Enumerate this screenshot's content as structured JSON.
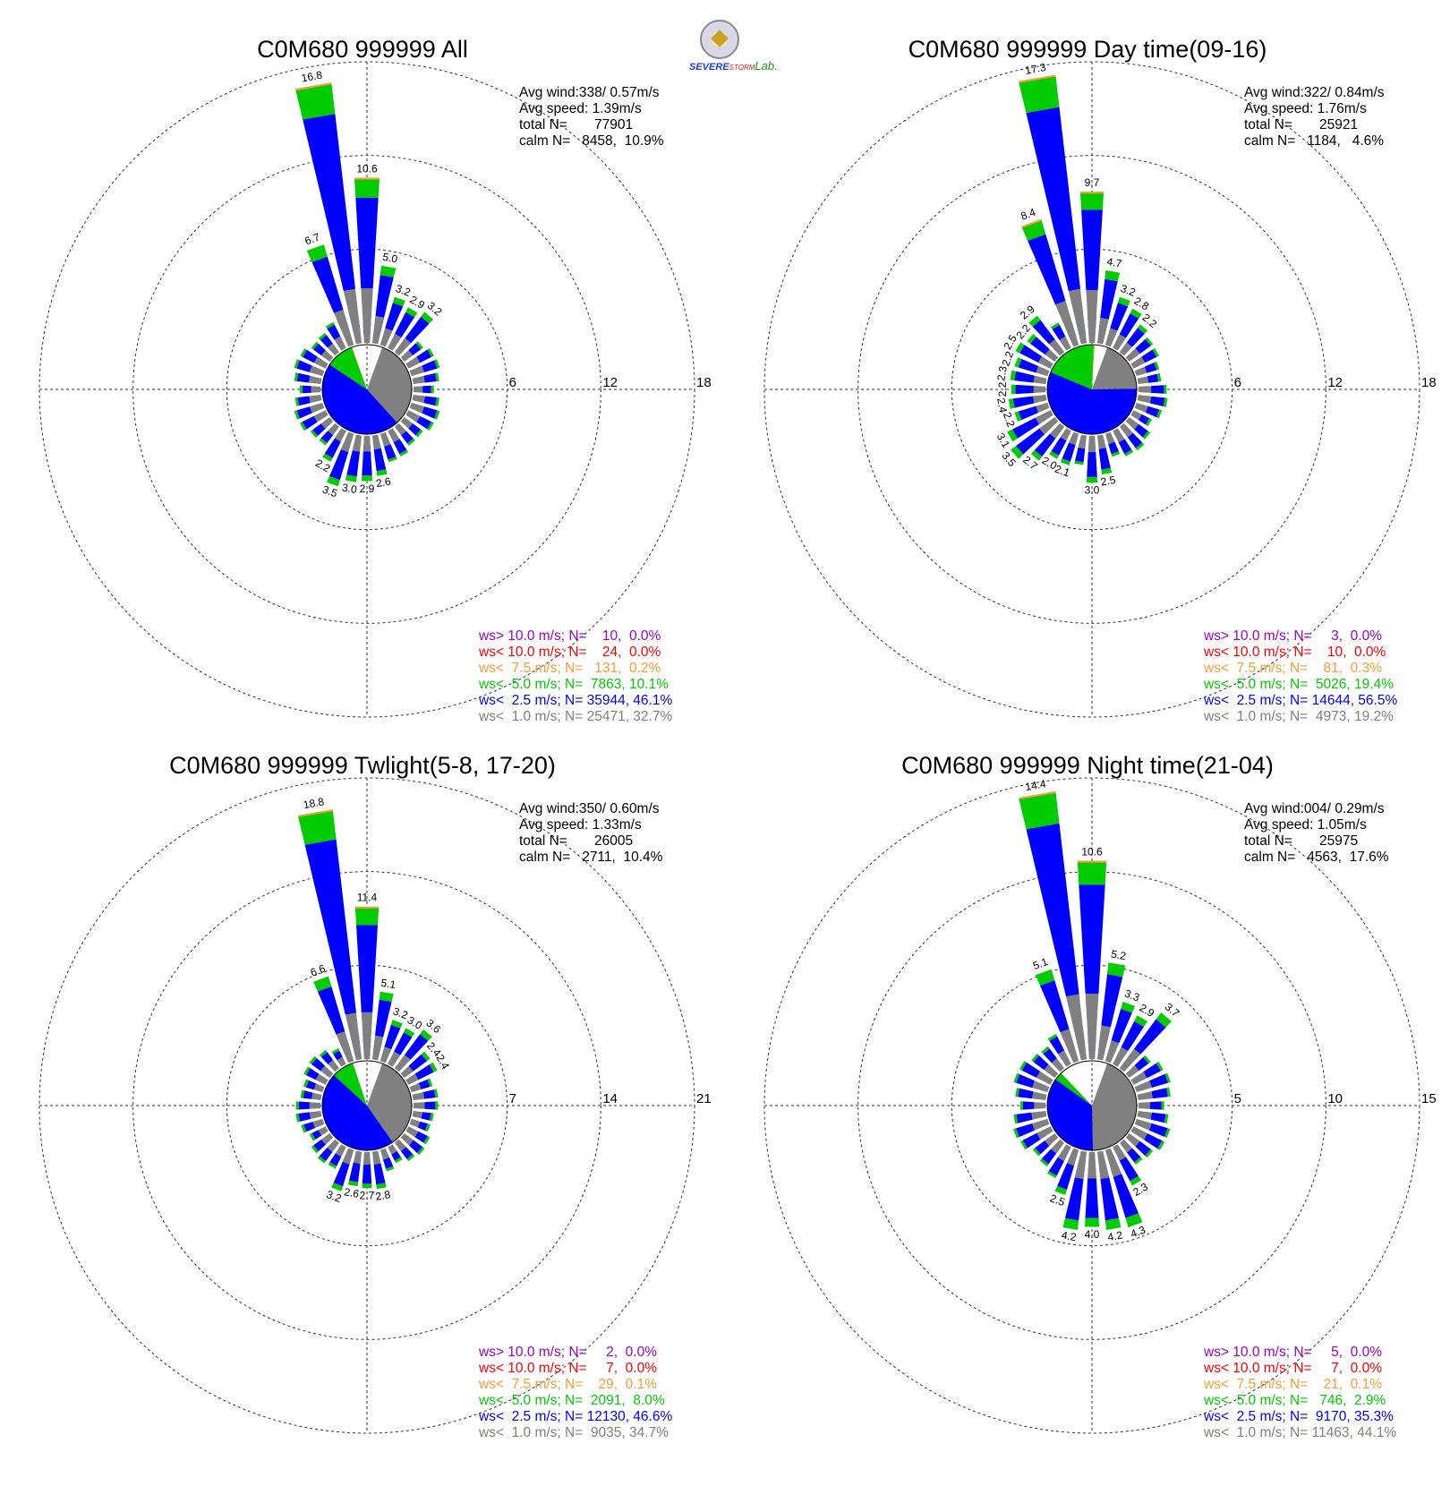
{
  "logo": {
    "text_severe": "SEVERE",
    "text_storm": "STORM",
    "text_lab": "Lab."
  },
  "colors": {
    "gray": "#808080",
    "blue": "#0000ff",
    "green": "#00cc00",
    "orange": "#ff9933",
    "red": "#ff0000",
    "purple": "#9900cc"
  },
  "chart_data": [
    {
      "type": "windrose",
      "title": "C0M680 999999 All",
      "stats": [
        "Avg wind:338/ 0.57m/s",
        "Avg speed: 1.39m/s",
        "total N=       77901",
        "calm N=   8458,  10.9%"
      ],
      "rings": [
        6,
        12,
        18
      ],
      "legend": [
        {
          "text": "ws> 10.0 m/s; N=    10,  0.0%",
          "color": "#9900cc"
        },
        {
          "text": "ws< 10.0 m/s; N=    24,  0.0%",
          "color": "#ff0000"
        },
        {
          "text": "ws<  7.5 m/s; N=   131,  0.2%",
          "color": "#ff9933"
        },
        {
          "text": "ws<  5.0 m/s; N=  7863, 10.1%",
          "color": "#00cc00"
        },
        {
          "text": "ws<  2.5 m/s; N= 35944, 46.1%",
          "color": "#0000ff"
        },
        {
          "text": "ws<  1.0 m/s; N= 25471, 32.7%",
          "color": "#808080"
        }
      ],
      "pie": [
        32.7,
        46.1,
        10.1,
        0.2
      ],
      "directions": [
        350,
        0,
        10,
        20,
        30,
        40,
        170,
        180,
        190,
        200,
        210,
        340
      ],
      "totals": [
        16.8,
        10.6,
        5.0,
        3.2,
        2.9,
        3.2,
        2.6,
        2.9,
        3.0,
        3.5,
        2.2,
        6.7
      ],
      "labels": [
        "16.8",
        "10.6",
        "5.0",
        "3.2",
        "2.9",
        "3.2",
        "2.6",
        "2.9",
        "3.0",
        "3.5",
        "2.2",
        "6.7"
      ]
    },
    {
      "type": "windrose",
      "title": "C0M680 999999 Day time(09-16)",
      "stats": [
        "Avg wind:322/ 0.84m/s",
        "Avg speed: 1.76m/s",
        "total N=       25921",
        "calm N=   1184,   4.6%"
      ],
      "rings": [
        6,
        12,
        18
      ],
      "legend": [
        {
          "text": "ws> 10.0 m/s; N=     3,  0.0%",
          "color": "#9900cc"
        },
        {
          "text": "ws< 10.0 m/s; N=    10,  0.0%",
          "color": "#ff0000"
        },
        {
          "text": "ws<  7.5 m/s; N=    81,  0.3%",
          "color": "#ff9933"
        },
        {
          "text": "ws<  5.0 m/s; N=  5026, 19.4%",
          "color": "#00cc00"
        },
        {
          "text": "ws<  2.5 m/s; N= 14644, 56.5%",
          "color": "#0000ff"
        },
        {
          "text": "ws<  1.0 m/s; N=  4973, 19.2%",
          "color": "#808080"
        }
      ],
      "pie": [
        19.2,
        56.5,
        19.4,
        0.3
      ],
      "directions": [
        340,
        350,
        0,
        10,
        20,
        30,
        40,
        320,
        310,
        300,
        290,
        280,
        270,
        260,
        250,
        240,
        230,
        220,
        210,
        200,
        180,
        170
      ],
      "totals": [
        8.4,
        17.3,
        9.7,
        4.7,
        3.2,
        2.8,
        2.2,
        2.9,
        2.2,
        2.5,
        2.2,
        2.3,
        2.2,
        2.4,
        2.2,
        3.1,
        3.5,
        2.7,
        2.0,
        2.1,
        3.0,
        2.5
      ],
      "labels": [
        "8.4",
        "17.3",
        "9.7",
        "4.7",
        "3.2",
        "2.8",
        "2.2",
        "2.9",
        "2.2",
        "2.5",
        "2.2",
        "2.3",
        "2.2",
        "2.4",
        "2.2",
        "3.1",
        "3.5",
        "2.7",
        "2.0",
        "2.1",
        "3.0",
        "2.5"
      ]
    },
    {
      "type": "windrose",
      "title": "C0M680 999999 Twlight(5-8, 17-20)",
      "stats": [
        "Avg wind:350/ 0.60m/s",
        "Avg speed: 1.33m/s",
        "total N=       26005",
        "calm N=   2711,  10.4%"
      ],
      "rings": [
        7,
        14,
        21
      ],
      "legend": [
        {
          "text": "ws> 10.0 m/s; N=     2,  0.0%",
          "color": "#9900cc"
        },
        {
          "text": "ws< 10.0 m/s; N=     7,  0.0%",
          "color": "#ff0000"
        },
        {
          "text": "ws<  7.5 m/s; N=    29,  0.1%",
          "color": "#ff9933"
        },
        {
          "text": "ws<  5.0 m/s; N=  2091,  8.0%",
          "color": "#00cc00"
        },
        {
          "text": "ws<  2.5 m/s; N= 12130, 46.6%",
          "color": "#0000ff"
        },
        {
          "text": "ws<  1.0 m/s; N=  9035, 34.7%",
          "color": "#808080"
        }
      ],
      "pie": [
        34.7,
        46.6,
        8.0,
        0.1
      ],
      "directions": [
        350,
        0,
        10,
        20,
        30,
        40,
        50,
        60,
        170,
        180,
        190,
        200,
        340
      ],
      "totals": [
        18.8,
        11.4,
        5.1,
        3.2,
        3.0,
        3.6,
        2.4,
        2.4,
        2.8,
        2.7,
        2.6,
        3.2,
        6.6
      ],
      "labels": [
        "18.8",
        "11.4",
        "5.1",
        "3.2",
        "3.0",
        "3.6",
        "2.4",
        "2.4",
        "2.8",
        "2.7",
        "2.6",
        "3.2",
        "6.6"
      ]
    },
    {
      "type": "windrose",
      "title": "C0M680 999999 Night time(21-04)",
      "stats": [
        "Avg wind:004/ 0.29m/s",
        "Avg speed: 1.05m/s",
        "total N=       25975",
        "calm N=   4563,  17.6%"
      ],
      "rings": [
        5,
        10,
        15
      ],
      "legend": [
        {
          "text": "ws> 10.0 m/s; N=     5,  0.0%",
          "color": "#9900cc"
        },
        {
          "text": "ws< 10.0 m/s; N=     7,  0.0%",
          "color": "#ff0000"
        },
        {
          "text": "ws<  7.5 m/s; N=    21,  0.1%",
          "color": "#ff9933"
        },
        {
          "text": "ws<  5.0 m/s; N=   746,  2.9%",
          "color": "#00cc00"
        },
        {
          "text": "ws<  2.5 m/s; N=  9170, 35.3%",
          "color": "#0000ff"
        },
        {
          "text": "ws<  1.0 m/s; N= 11463, 44.1%",
          "color": "#808080"
        }
      ],
      "pie": [
        44.1,
        35.3,
        2.9,
        0.1
      ],
      "directions": [
        340,
        350,
        0,
        10,
        20,
        30,
        40,
        200,
        190,
        180,
        170,
        160,
        150
      ],
      "totals": [
        5.1,
        14.4,
        10.6,
        5.2,
        3.3,
        2.9,
        3.7,
        2.5,
        4.2,
        4.0,
        4.2,
        4.3,
        2.3
      ],
      "labels": [
        "5.1",
        "14.4",
        "10.6",
        "5.2",
        "3.3",
        "2.9",
        "3.7",
        "2.5",
        "4.2",
        "4.0",
        "4.2",
        "4.3",
        "2.3"
      ]
    }
  ]
}
